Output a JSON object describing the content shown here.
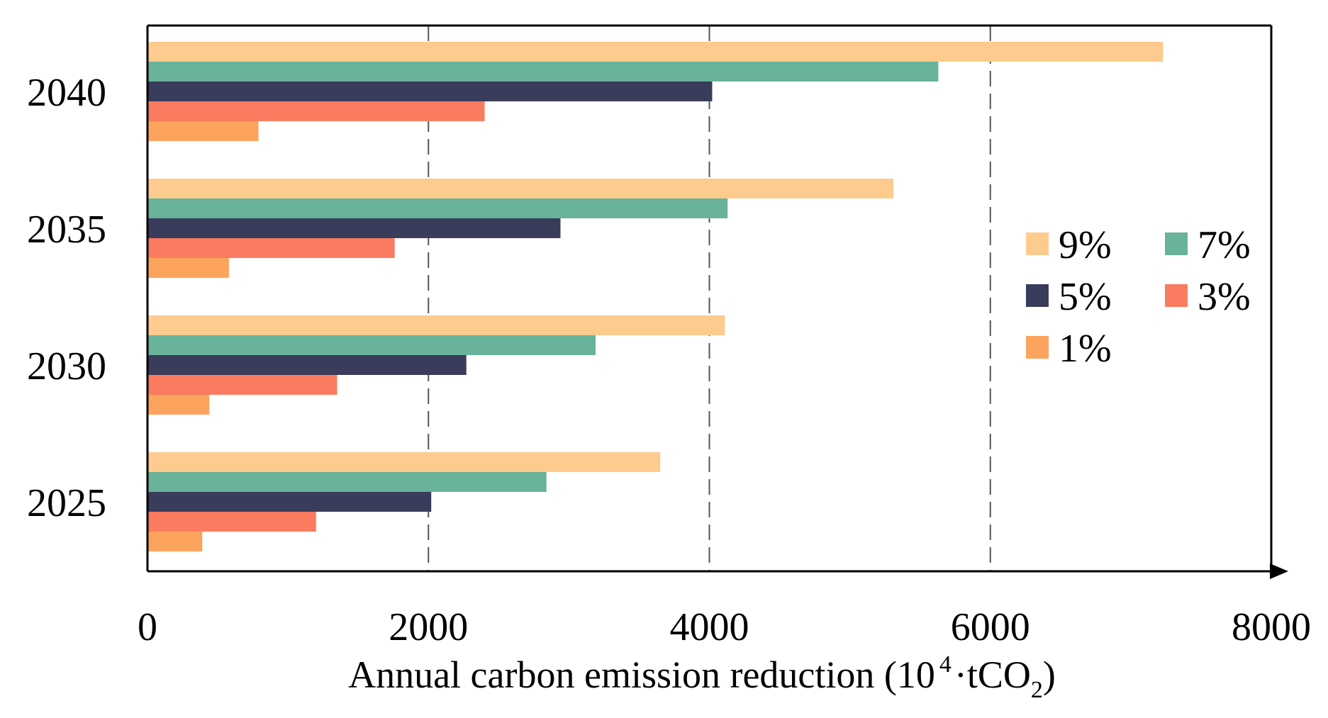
{
  "chart_data": {
    "type": "bar",
    "orientation": "horizontal",
    "categories": [
      "2040",
      "2035",
      "2030",
      "2025"
    ],
    "series": [
      {
        "name": "9%",
        "color": "#FDCB8E",
        "values": [
          7230,
          5310,
          4110,
          3650
        ]
      },
      {
        "name": "7%",
        "color": "#68B399",
        "values": [
          5630,
          4130,
          3190,
          2840
        ]
      },
      {
        "name": "5%",
        "color": "#393C5B",
        "values": [
          4020,
          2940,
          2270,
          2020
        ]
      },
      {
        "name": "3%",
        "color": "#FA7B5F",
        "values": [
          2400,
          1760,
          1350,
          1200
        ]
      },
      {
        "name": "1%",
        "color": "#FCA35E",
        "values": [
          790,
          580,
          440,
          390
        ]
      }
    ],
    "title": "",
    "xlabel": "Annual carbon emission  reduction  (10",
    "xlabel_superscript": "4",
    "xlabel_unit": "·tCO",
    "xlabel_subscript": "2",
    "xlabel_close": ")",
    "xlim": [
      0,
      8000
    ],
    "xticks": [
      "0",
      "2000",
      "4000",
      "6000",
      "8000"
    ],
    "xtick_values": [
      0,
      2000,
      4000,
      6000,
      8000
    ],
    "gridlines": [
      2000,
      4000,
      6000
    ],
    "grid": "vertical dashed",
    "legend_position": "right"
  }
}
